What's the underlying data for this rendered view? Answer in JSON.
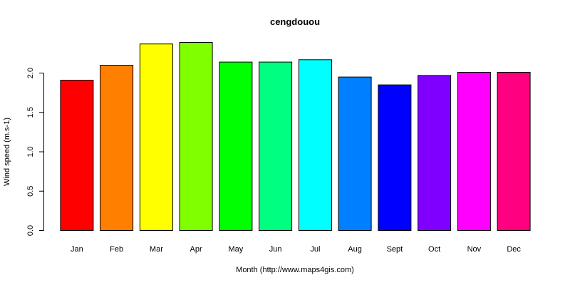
{
  "chart_data": {
    "type": "bar",
    "title": "cengdouou",
    "xlabel": "Month (http://www.maps4gis.com)",
    "ylabel": "Wind speed (m.s-1)",
    "categories": [
      "Jan",
      "Feb",
      "Mar",
      "Apr",
      "May",
      "Jun",
      "Jul",
      "Aug",
      "Sept",
      "Oct",
      "Nov",
      "Dec"
    ],
    "values": [
      1.91,
      2.1,
      2.37,
      2.39,
      2.14,
      2.14,
      2.17,
      1.95,
      1.85,
      1.97,
      2.01,
      2.01
    ],
    "colors": [
      "#FF0000",
      "#FF8000",
      "#FFFF00",
      "#80FF00",
      "#00FF00",
      "#00FF80",
      "#00FFFF",
      "#0080FF",
      "#0000FF",
      "#8000FF",
      "#FF00FF",
      "#FF0080"
    ],
    "yticks": [
      "0.0",
      "0.5",
      "1.0",
      "1.5",
      "2.0"
    ],
    "ylim": [
      0,
      2.39
    ],
    "grid": false,
    "legend": "none"
  }
}
